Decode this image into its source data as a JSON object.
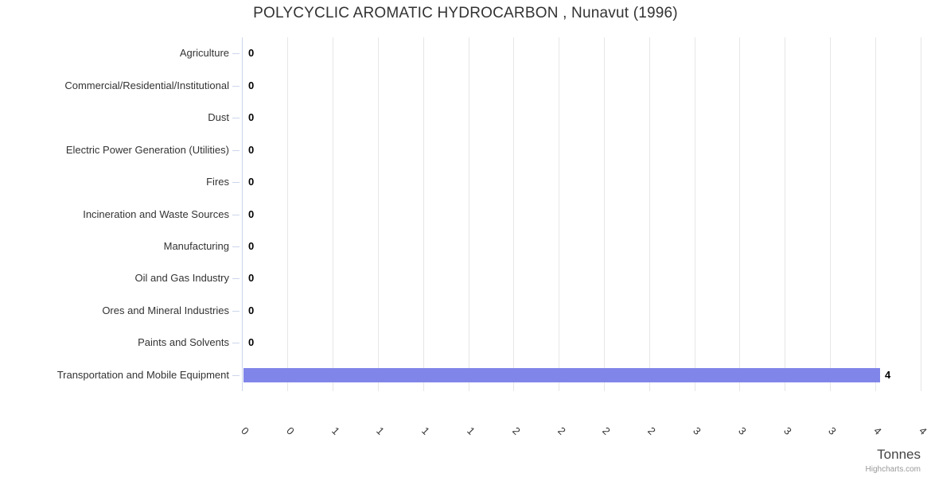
{
  "title": "POLYCYCLIC AROMATIC HYDROCARBON , Nunavut (1996)",
  "credits_label": "Highcharts.com",
  "chart_data": {
    "type": "bar",
    "orientation": "horizontal",
    "title": "POLYCYCLIC AROMATIC HYDROCARBON , Nunavut (1996)",
    "xlabel": "Tonnes",
    "legend": false,
    "grid": true,
    "categories": [
      "Agriculture",
      "Commercial/Residential/Institutional",
      "Dust",
      "Electric Power Generation (Utilities)",
      "Fires",
      "Incineration and Waste Sources",
      "Manufacturing",
      "Oil and Gas Industry",
      "Ores and Mineral Industries",
      "Paints and Solvents",
      "Transportation and Mobile Equipment"
    ],
    "values": [
      0,
      0,
      0,
      0,
      0,
      0,
      0,
      0,
      0,
      0,
      4
    ],
    "data_labels": [
      "0",
      "0",
      "0",
      "0",
      "0",
      "0",
      "0",
      "0",
      "0",
      "0",
      "4"
    ],
    "x_tick_labels": [
      "0",
      "0",
      "1",
      "1",
      "1",
      "1",
      "2",
      "2",
      "2",
      "2",
      "3",
      "3",
      "3",
      "3",
      "4",
      "4"
    ],
    "x_tick_rotation_deg": 45,
    "colors": {
      "bar": "#8085e9",
      "grid_line": "#e6e6e6",
      "axis_line": "#ccd6eb",
      "title_text": "#333333",
      "category_text": "#333333",
      "tick_text": "#333333",
      "data_label_text": "#000000",
      "axis_title_text": "#444444",
      "credits_text": "#999999"
    },
    "layout": {
      "bar_fractions": [
        0,
        0,
        0,
        0,
        0,
        0,
        0,
        0,
        0,
        0,
        0.939
      ]
    }
  }
}
